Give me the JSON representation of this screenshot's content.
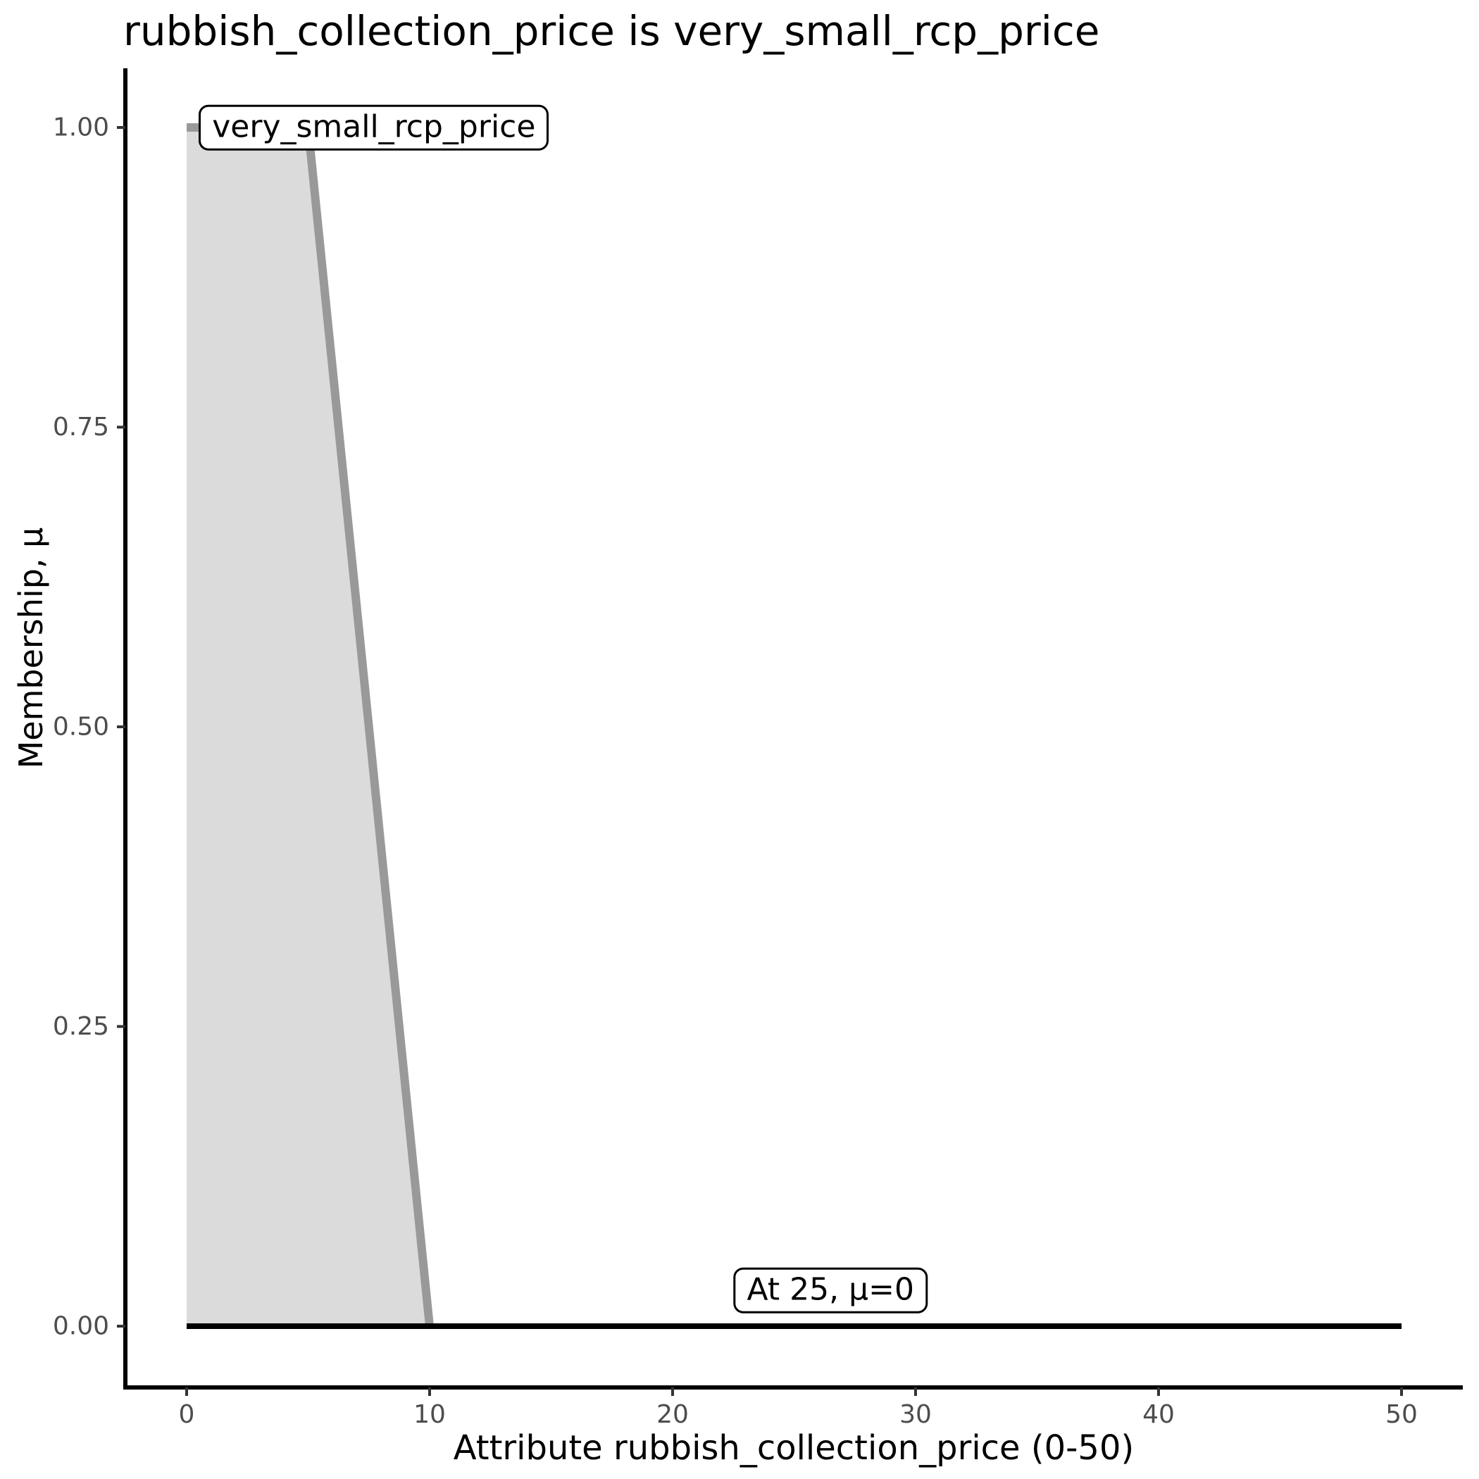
{
  "chart_data": {
    "type": "area",
    "title": "rubbish_collection_price is very_small_rcp_price",
    "xlabel": "Attribute rubbish_collection_price (0-50)",
    "ylabel": "Membership, μ",
    "xlim": [
      0,
      50
    ],
    "ylim": [
      0,
      1
    ],
    "grid": false,
    "legend": "none",
    "x_ticks": [
      {
        "v": 0,
        "label": "0"
      },
      {
        "v": 10,
        "label": "10"
      },
      {
        "v": 20,
        "label": "20"
      },
      {
        "v": 30,
        "label": "30"
      },
      {
        "v": 40,
        "label": "40"
      },
      {
        "v": 50,
        "label": "50"
      }
    ],
    "y_ticks": [
      {
        "v": 0.0,
        "label": "0.00"
      },
      {
        "v": 0.25,
        "label": "0.25"
      },
      {
        "v": 0.5,
        "label": "0.50"
      },
      {
        "v": 0.75,
        "label": "0.75"
      },
      {
        "v": 1.0,
        "label": "1.00"
      }
    ],
    "membership_function": {
      "name": "very_small_rcp_price",
      "attribute": "rubbish_collection_price",
      "curve_points": [
        [
          0,
          1
        ],
        [
          5,
          1
        ],
        [
          10,
          0
        ]
      ],
      "fill_polygon": [
        [
          0,
          0
        ],
        [
          0,
          1
        ],
        [
          5,
          1
        ],
        [
          10,
          0
        ]
      ],
      "zero_line": [
        [
          0,
          0
        ],
        [
          50,
          0
        ]
      ]
    },
    "annotations": [
      {
        "text": "very_small_rcp_price",
        "x": 0.5,
        "y": 1.0,
        "anchor": "left"
      },
      {
        "text": "At 25, μ=0",
        "x": 26.5,
        "y": 0.03,
        "anchor": "center"
      }
    ],
    "colors": {
      "fill": "#DBDBDB",
      "curve": "#999999",
      "zero_line": "#000000",
      "axis": "#000000",
      "tick": "#333333",
      "tick_label": "#4D4D4D",
      "text": "#000000",
      "annotation_bg": "#FFFFFF",
      "annotation_border": "#000000"
    }
  }
}
